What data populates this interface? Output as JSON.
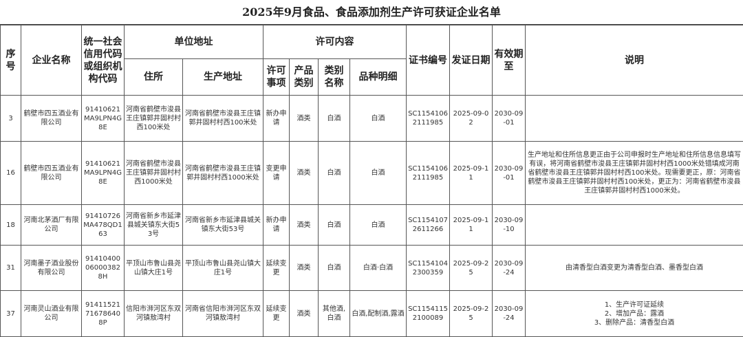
{
  "title": "2025年9月食品、食品添加剂生产许可获证企业名单",
  "headers": {
    "seq": "序号",
    "company": "企业名称",
    "credit_code": "统一社会信用代码或组织机构代码",
    "address_group": "单位地址",
    "residence": "住所",
    "production_address": "生产地址",
    "license_group": "许可内容",
    "license_item": "许可事项",
    "product_category": "产品类别",
    "category_name": "类别名称",
    "variety_detail": "品种明细",
    "cert_no": "证书编号",
    "issue_date": "发证日期",
    "valid_until": "有效期至",
    "note": "说明"
  },
  "rows": [
    {
      "seq": "3",
      "company": "鹤壁市四五酒业有限公司",
      "credit_code": "91410621MA9LPN4G8E",
      "residence": "河南省鹤壁市浚县王庄镇郭井固村村西100米处",
      "production_address": "河南省鹤壁市浚县王庄镇郭井固村村西100米处",
      "license_item": "新办申请",
      "product_category": "酒类",
      "category_name": "白酒",
      "variety_detail": "白酒",
      "cert_no": "SC11541062111985",
      "issue_date": "2025-09-02",
      "valid_until": "2030-09-01",
      "note": ""
    },
    {
      "seq": "16",
      "company": "鹤壁市四五酒业有限公司",
      "credit_code": "91410621MA9LPN4G8E",
      "residence": "河南省鹤壁市浚县王庄镇郭井固村村西1000米处",
      "production_address": "河南省鹤壁市浚县王庄镇郭井固村村西1000米处",
      "license_item": "变更申请",
      "product_category": "酒类",
      "category_name": "白酒",
      "variety_detail": "白酒",
      "cert_no": "SC11541062111985",
      "issue_date": "2025-09-11",
      "valid_until": "2030-09-01",
      "note": "生产地址和住所信息更正由于公司申报时生产地址和住所信息信息填写有误，将河南省鹤壁市浚县王庄镇郭井固村村西1000米处错填成河南省鹤壁市浚县王庄镇郭井固村村西100米处。现需要更正，原：河南省鹤壁市浚县王庄镇郭井固村村西100米处，更正为：河南省鹤壁市浚县王庄镇郭井固村村西1000米处。"
    },
    {
      "seq": "18",
      "company": "河南北茅酒厂有限公司",
      "credit_code": "91410726MA478QD163",
      "residence": "河南省新乡市延津县城关镇东大街53号",
      "production_address": "河南省新乡市延津县城关镇东大街53号",
      "license_item": "新办申请",
      "product_category": "酒类",
      "category_name": "白酒",
      "variety_detail": "白酒",
      "cert_no": "SC11541072611266",
      "issue_date": "2025-09-11",
      "valid_until": "2030-09-10",
      "note": ""
    },
    {
      "seq": "31",
      "company": "河南墨子酒业股份有限公司",
      "credit_code": "91410400060003828H",
      "residence": "平顶山市鲁山县尧山镇大庄1号",
      "production_address": "平顶山市鲁山县尧山镇大庄1号",
      "license_item": "延续变更",
      "product_category": "酒类",
      "category_name": "白酒",
      "variety_detail": "白酒·白酒",
      "cert_no": "SC11541042300359",
      "issue_date": "2025-09-25",
      "valid_until": "2030-09-24",
      "note": "由清香型白酒变更为清香型白酒、墨香型白酒"
    },
    {
      "seq": "37",
      "company": "河南灵山酒业有限公司",
      "credit_code": "91411521716786408P",
      "residence": "信阳市浉河区东双河镇敖湾村",
      "production_address": "河南省信阳市浉河区东双河镇敖湾村",
      "license_item": "延续变更",
      "product_category": "酒类",
      "category_name": "其他酒,白酒",
      "variety_detail": "白酒,配制酒,露酒",
      "cert_no": "SC11541152100089",
      "issue_date": "2025-09-25",
      "valid_until": "2030-09-24",
      "note": "1、生产许可证延续\n2、增加产品：露酒\n3、删除产品：清香型白酒"
    }
  ]
}
